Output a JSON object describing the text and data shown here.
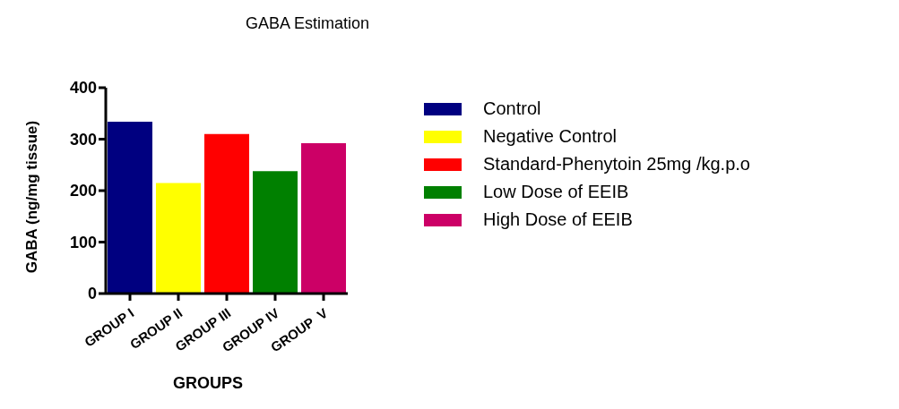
{
  "chart_data": {
    "type": "bar",
    "title": "GABA Estimation",
    "xlabel": "GROUPS",
    "ylabel": "GABA (ng/mg tissue)",
    "categories": [
      "GROUP I",
      "GROUP II",
      "GROUP III",
      "GROUP IV",
      "GROUP  V"
    ],
    "series": [
      {
        "name": "Control",
        "color": "#000080",
        "values": [
          334,
          null,
          null,
          null,
          null
        ]
      },
      {
        "name": "Negative Control",
        "color": "#ffff00",
        "values": [
          null,
          215,
          null,
          null,
          null
        ]
      },
      {
        "name": "Standard-Phenytoin 25mg /kg.p.o",
        "color": "#ff0000",
        "values": [
          null,
          null,
          310,
          null,
          null
        ]
      },
      {
        "name": "Low Dose of EEIB",
        "color": "#008000",
        "values": [
          null,
          null,
          null,
          238,
          null
        ]
      },
      {
        "name": "High Dose of EEIB",
        "color": "#cc0066",
        "values": [
          null,
          null,
          null,
          null,
          292
        ]
      }
    ],
    "ylim": [
      0,
      400
    ],
    "yticks": [
      0,
      100,
      200,
      300,
      400
    ],
    "legend": "right"
  }
}
